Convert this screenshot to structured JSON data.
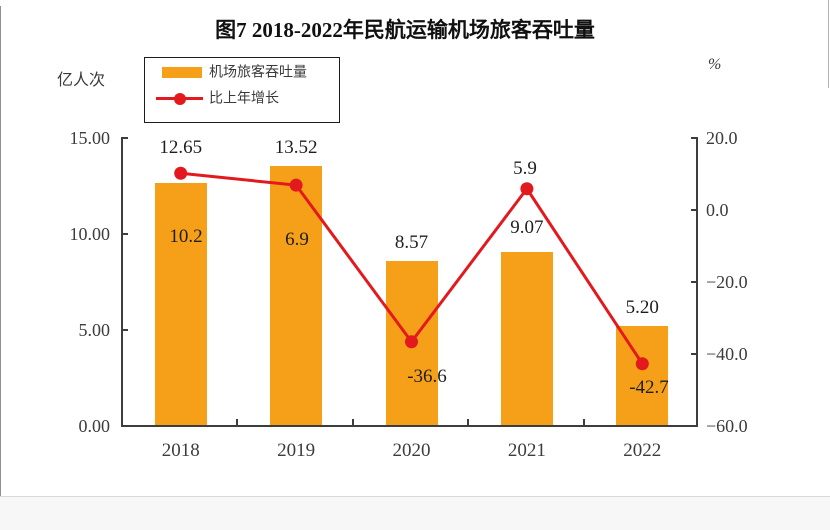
{
  "title": "图7 2018-2022年民航运输机场旅客吞吐量",
  "legend": [
    {
      "label": "机场旅客吞吐量",
      "type": "bar"
    },
    {
      "label": "比上年增长",
      "type": "line"
    }
  ],
  "colors": {
    "bar": "#F6A01A",
    "line": "#E2191D",
    "axis": "#3d3d3d"
  },
  "chart_data": {
    "type": "bar+line combo",
    "title": "图7 2018-2022年民航运输机场旅客吞吐量",
    "categories": [
      "2018",
      "2019",
      "2020",
      "2021",
      "2022"
    ],
    "series": [
      {
        "name": "机场旅客吞吐量",
        "type": "bar",
        "axis": "left",
        "color": "#F6A01A",
        "values": [
          12.65,
          13.52,
          8.57,
          9.07,
          5.2
        ],
        "labels": [
          "12.65",
          "13.52",
          "8.57",
          "9.07",
          "5.20"
        ]
      },
      {
        "name": "比上年增长",
        "type": "line",
        "axis": "right",
        "color": "#E2191D",
        "values": [
          10.2,
          6.9,
          -36.6,
          5.9,
          -42.7
        ],
        "labels": [
          "10.2",
          "6.9",
          "-36.6",
          "5.9",
          "-42.7"
        ]
      }
    ],
    "left_axis": {
      "unit": "亿人次",
      "min": 0,
      "max": 15,
      "tick_values": [
        15,
        10,
        5,
        0
      ],
      "tick_labels": [
        "15.00",
        "10.00",
        "5.00",
        "0.00"
      ]
    },
    "right_axis": {
      "unit": "%",
      "min": -60,
      "max": 20,
      "tick_values": [
        20,
        0,
        -20,
        -40,
        -60
      ],
      "tick_labels": [
        "20.0",
        "0.0",
        "−20.0",
        "−40.0",
        "−60.0"
      ]
    },
    "grid": false,
    "legend_position": "top-left"
  }
}
